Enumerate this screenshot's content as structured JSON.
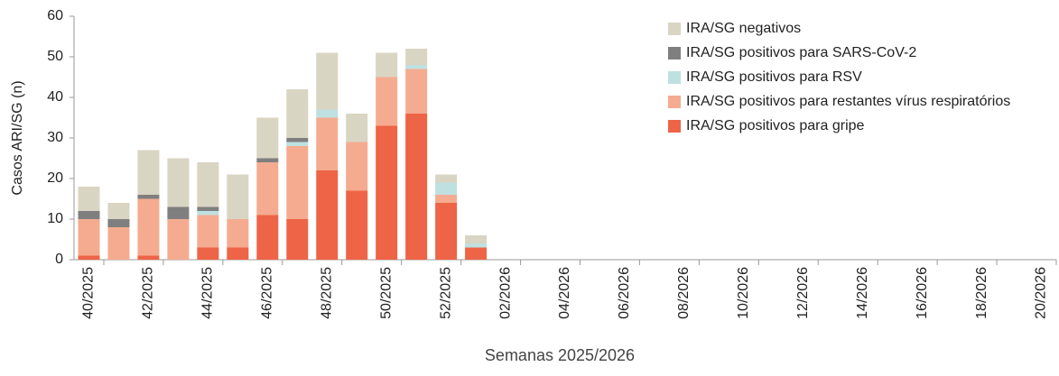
{
  "chart_data": {
    "type": "stacked_bar",
    "x_label": "Semanas 2025/2026",
    "y_label": "Casos ARI/SG (n)",
    "categories": [
      "40/2025",
      null,
      "42/2025",
      null,
      "44/2025",
      null,
      "46/2025",
      null,
      "48/2025",
      null,
      "50/2025",
      null,
      "52/2025",
      null,
      "02/2026",
      null,
      "04/2026",
      null,
      "06/2026",
      null,
      "08/2026",
      null,
      "10/2026",
      null,
      "12/2026",
      null,
      "14/2026",
      null,
      "16/2026",
      null,
      "18/2026",
      null,
      "20/2026"
    ],
    "series": [
      {
        "name": "IRA/SG positivos para gripe",
        "color": "#ee6446",
        "values": [
          1,
          0,
          1,
          0,
          3,
          3,
          11,
          10,
          22,
          17,
          33,
          36,
          14,
          3,
          null,
          null,
          null,
          null,
          null,
          null,
          null,
          null,
          null,
          null,
          null,
          null,
          null,
          null,
          null,
          null,
          null,
          null,
          null
        ]
      },
      {
        "name": "IRA/SG positivos para restantes vírus respiratórios",
        "color": "#f5ab90",
        "values": [
          9,
          8,
          14,
          10,
          8,
          7,
          13,
          18,
          13,
          12,
          12,
          11,
          2,
          0,
          null,
          null,
          null,
          null,
          null,
          null,
          null,
          null,
          null,
          null,
          null,
          null,
          null,
          null,
          null,
          null,
          null,
          null,
          null
        ]
      },
      {
        "name": "IRA/SG positivos para RSV",
        "color": "#bfe0e0",
        "values": [
          0,
          0,
          0,
          0,
          1,
          0,
          0,
          1,
          2,
          0,
          0,
          1,
          3,
          1,
          null,
          null,
          null,
          null,
          null,
          null,
          null,
          null,
          null,
          null,
          null,
          null,
          null,
          null,
          null,
          null,
          null,
          null,
          null
        ]
      },
      {
        "name": "IRA/SG positivos para SARS-CoV-2",
        "color": "#7f7f7f",
        "values": [
          2,
          2,
          1,
          3,
          1,
          0,
          1,
          1,
          0,
          0,
          0,
          0,
          0,
          0,
          null,
          null,
          null,
          null,
          null,
          null,
          null,
          null,
          null,
          null,
          null,
          null,
          null,
          null,
          null,
          null,
          null,
          null,
          null
        ]
      },
      {
        "name": "IRA/SG negativos",
        "color": "#d9d5c3",
        "values": [
          6,
          4,
          11,
          12,
          11,
          11,
          10,
          12,
          14,
          7,
          6,
          4,
          2,
          2,
          null,
          null,
          null,
          null,
          null,
          null,
          null,
          null,
          null,
          null,
          null,
          null,
          null,
          null,
          null,
          null,
          null,
          null,
          null
        ]
      }
    ],
    "ylim": [
      0,
      60
    ],
    "yticks": [
      0,
      10,
      20,
      30,
      40,
      50,
      60
    ]
  }
}
